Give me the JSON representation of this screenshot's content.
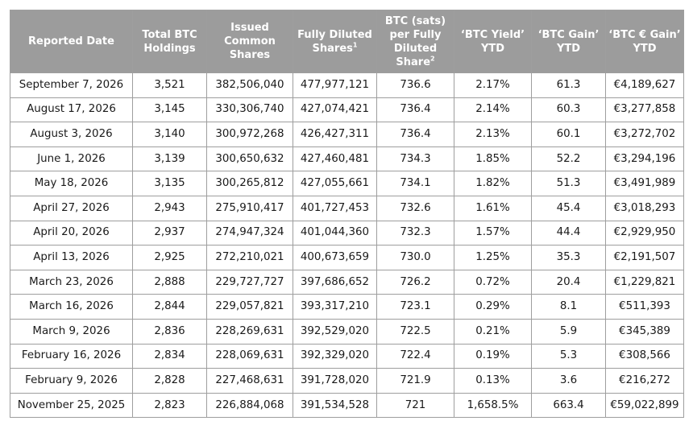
{
  "table": {
    "headers": [
      {
        "lines": [
          "Reported Date"
        ]
      },
      {
        "lines": [
          "Total BTC",
          "Holdings"
        ]
      },
      {
        "lines": [
          "Issued",
          "Common",
          "Shares"
        ]
      },
      {
        "lines": [
          "Fully Diluted",
          "Shares"
        ],
        "sup": "1"
      },
      {
        "lines": [
          "BTC (sats)",
          "per Fully",
          "Diluted",
          "Share"
        ],
        "sup": "2"
      },
      {
        "lines": [
          "‘BTC Yield’",
          "YTD"
        ]
      },
      {
        "lines": [
          "‘BTC Gain’",
          "YTD"
        ]
      },
      {
        "lines": [
          "‘BTC € Gain’",
          "YTD"
        ]
      }
    ],
    "rows": [
      [
        "September 7, 2026",
        "3,521",
        "382,506,040",
        "477,977,121",
        "736.6",
        "2.17%",
        "61.3",
        "€4,189,627"
      ],
      [
        "August 17, 2026",
        "3,145",
        "330,306,740",
        "427,074,421",
        "736.4",
        "2.14%",
        "60.3",
        "€3,277,858"
      ],
      [
        "August 3, 2026",
        "3,140",
        "300,972,268",
        "426,427,311",
        "736.4",
        "2.13%",
        "60.1",
        "€3,272,702"
      ],
      [
        "June 1, 2026",
        "3,139",
        "300,650,632",
        "427,460,481",
        "734.3",
        "1.85%",
        "52.2",
        "€3,294,196"
      ],
      [
        "May 18, 2026",
        "3,135",
        "300,265,812",
        "427,055,661",
        "734.1",
        "1.82%",
        "51.3",
        "€3,491,989"
      ],
      [
        "April 27, 2026",
        "2,943",
        "275,910,417",
        "401,727,453",
        "732.6",
        "1.61%",
        "45.4",
        "€3,018,293"
      ],
      [
        "April 20, 2026",
        "2,937",
        "274,947,324",
        "401,044,360",
        "732.3",
        "1.57%",
        "44.4",
        "€2,929,950"
      ],
      [
        "April 13, 2026",
        "2,925",
        "272,210,021",
        "400,673,659",
        "730.0",
        "1.25%",
        "35.3",
        "€2,191,507"
      ],
      [
        "March 23, 2026",
        "2,888",
        "229,727,727",
        "397,686,652",
        "726.2",
        "0.72%",
        "20.4",
        "€1,229,821"
      ],
      [
        "March 16, 2026",
        "2,844",
        "229,057,821",
        "393,317,210",
        "723.1",
        "0.29%",
        "8.1",
        "€511,393"
      ],
      [
        "March 9, 2026",
        "2,836",
        "228,269,631",
        "392,529,020",
        "722.5",
        "0.21%",
        "5.9",
        "€345,389"
      ],
      [
        "February 16, 2026",
        "2,834",
        "228,069,631",
        "392,329,020",
        "722.4",
        "0.19%",
        "5.3",
        "€308,566"
      ],
      [
        "February 9, 2026",
        "2,828",
        "227,468,631",
        "391,728,020",
        "721.9",
        "0.13%",
        "3.6",
        "€216,272"
      ],
      [
        "November 25, 2025",
        "2,823",
        "226,884,068",
        "391,534,528",
        "721",
        "1,658.5%",
        "663.4",
        "€59,022,899"
      ]
    ]
  }
}
